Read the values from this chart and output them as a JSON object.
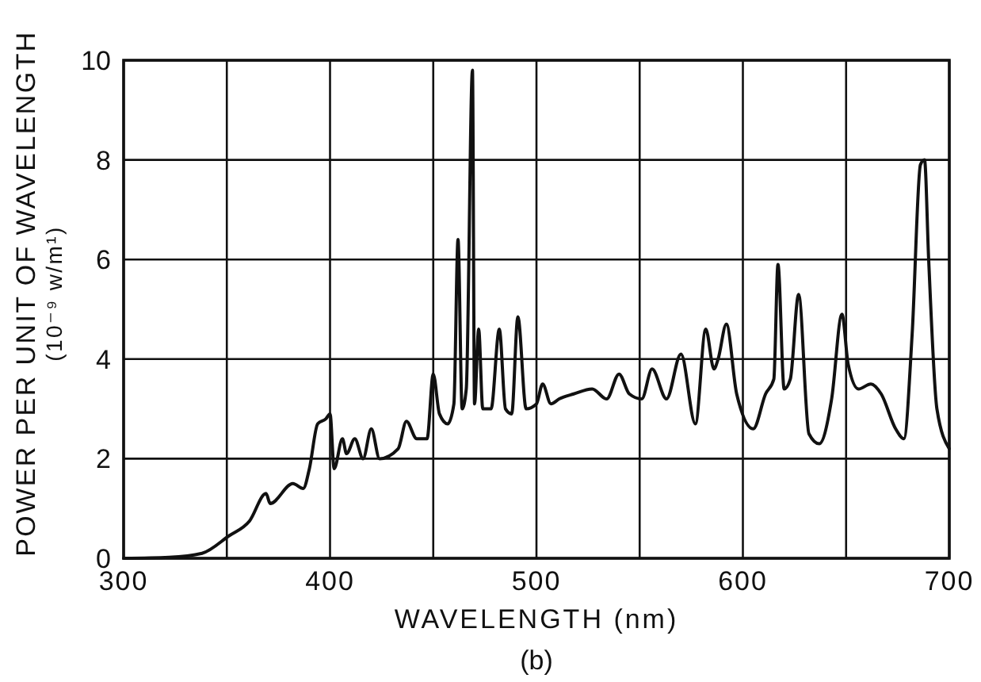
{
  "chart_data": {
    "type": "line",
    "xlabel": "WAVELENGTH (nm)",
    "ylabel": "POWER PER UNIT OF WAVELENGTH\n(10⁻⁹ w/m¹)",
    "annotations": [
      "(b)"
    ],
    "x": [
      300,
      322,
      338,
      351,
      361,
      369,
      371,
      382,
      387,
      390,
      394,
      398,
      400,
      402,
      406,
      408,
      412,
      416,
      420,
      424,
      433,
      437,
      442,
      447,
      450,
      453,
      457,
      460,
      462,
      464,
      466,
      469,
      470,
      472,
      474,
      478,
      482,
      485,
      488,
      491,
      495,
      500,
      503,
      507,
      511,
      518,
      527,
      534,
      540,
      545,
      551,
      556,
      563,
      570,
      577,
      582,
      586,
      588,
      592,
      597,
      605,
      611,
      615,
      617,
      620,
      623,
      627,
      632,
      637,
      643,
      648,
      651,
      656,
      662,
      667,
      674,
      678,
      682,
      686,
      688,
      690,
      694,
      700
    ],
    "series": [
      {
        "color": "#111111",
        "values": [
          0,
          0.02,
          0.1,
          0.45,
          0.75,
          1.3,
          1.1,
          1.5,
          1.4,
          1.8,
          2.7,
          2.8,
          2.9,
          1.8,
          2.4,
          2.1,
          2.4,
          2.0,
          2.6,
          2.0,
          2.2,
          2.75,
          2.4,
          2.4,
          3.7,
          2.9,
          2.7,
          3.1,
          6.4,
          3.0,
          3.4,
          9.8,
          3.1,
          4.6,
          3.0,
          3.0,
          4.6,
          3.0,
          2.9,
          4.85,
          3.0,
          3.1,
          3.5,
          3.1,
          3.2,
          3.3,
          3.4,
          3.2,
          3.7,
          3.3,
          3.2,
          3.8,
          3.2,
          4.1,
          2.7,
          4.6,
          3.8,
          4.0,
          4.7,
          3.3,
          2.6,
          3.3,
          3.6,
          5.9,
          3.4,
          3.6,
          5.3,
          2.5,
          2.3,
          3.2,
          4.9,
          3.9,
          3.4,
          3.5,
          3.3,
          2.6,
          2.4,
          4.5,
          7.9,
          8.0,
          6.0,
          3.0,
          2.2
        ]
      }
    ],
    "xlim": [
      300,
      700
    ],
    "ylim": [
      0,
      10
    ],
    "xticks": [
      300,
      {
        "value": 350,
        "label": null
      },
      400,
      {
        "value": 450,
        "label": null
      },
      500,
      {
        "value": 550,
        "label": null
      },
      600,
      {
        "value": 650,
        "label": null
      },
      700
    ],
    "yticks": [
      0,
      2,
      4,
      6,
      8,
      10
    ],
    "grid": true,
    "marker": "none",
    "line_style": "solid"
  }
}
